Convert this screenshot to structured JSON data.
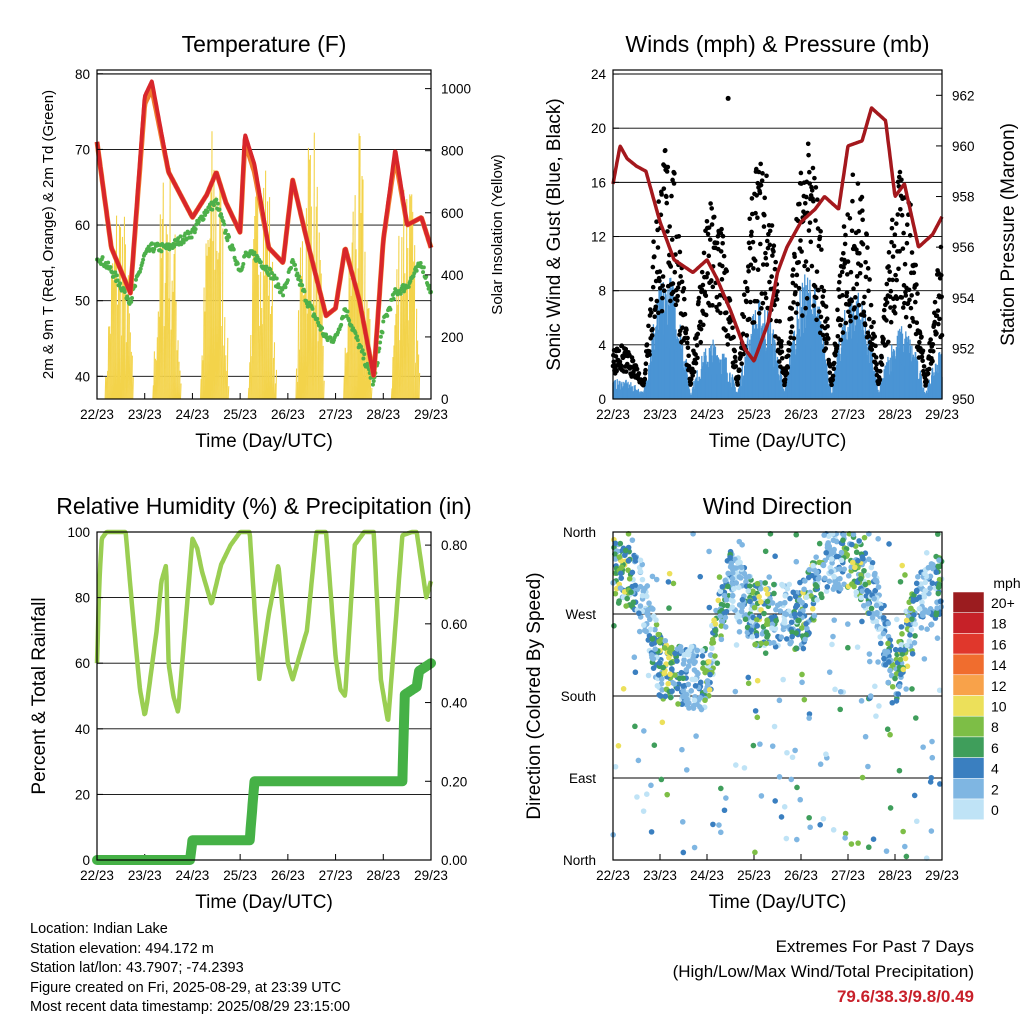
{
  "time_ticks": [
    "22/23",
    "23/23",
    "24/23",
    "25/23",
    "26/23",
    "27/23",
    "28/23",
    "29/23"
  ],
  "colors": {
    "temp2m": "#d8262b",
    "temp9m": "#f07b2e",
    "dewpoint": "#4db04a",
    "insolation": "#f3d34a",
    "wind_sonic": "#4a94d4",
    "wind_gust": "#000000",
    "pressure": "#a4181d",
    "rh": "#9ace52",
    "precip": "#45b146"
  },
  "chart_data": [
    {
      "type": "line",
      "title": "Temperature (F)",
      "xlabel": "Time (Day/UTC)",
      "ylabel": "2m & 9m T (Red, Orange) & 2m Td (Green)",
      "ylabel_right": "Solar Insolation (Yellow)",
      "ylim": [
        37,
        80.5
      ],
      "ylim_right": [
        0,
        1060
      ],
      "yticks": [
        40,
        50,
        60,
        70,
        80
      ],
      "yticks_right": [
        0,
        200,
        400,
        600,
        800,
        1000
      ],
      "grid_y": [
        40,
        50,
        60,
        70,
        80
      ],
      "x": [
        0,
        0.3,
        0.7,
        1.0,
        1.15,
        1.5,
        2.0,
        2.3,
        2.5,
        2.7,
        3.0,
        3.1,
        3.3,
        3.6,
        3.9,
        4.1,
        4.4,
        4.8,
        5.0,
        5.2,
        5.5,
        5.8,
        6.0,
        6.25,
        6.5,
        6.8,
        7.0
      ],
      "series": [
        {
          "name": "2m T",
          "values": [
            71,
            57,
            51,
            77,
            79,
            67,
            61,
            64,
            67,
            63,
            59,
            72,
            68,
            57,
            55,
            66,
            58,
            48,
            49,
            57,
            50,
            40,
            58,
            70,
            60,
            61,
            57
          ]
        },
        {
          "name": "9m T",
          "values": [
            71,
            57,
            51,
            76,
            78,
            67,
            61,
            64,
            67,
            63,
            59,
            71,
            67,
            57,
            55,
            66,
            58,
            48,
            49,
            57,
            50,
            40,
            58,
            69,
            60,
            61,
            57
          ]
        },
        {
          "name": "2m Td",
          "values": [
            56,
            54,
            50,
            56,
            57,
            57,
            59,
            62,
            63,
            59,
            54,
            56,
            56,
            54,
            51,
            55,
            50,
            45,
            45,
            49,
            44,
            39,
            47,
            51,
            52,
            55,
            51
          ]
        },
        {
          "name": "Insolation",
          "daily_peaks": [
            720,
            840,
            950,
            960,
            1000,
            870,
            870
          ]
        }
      ]
    },
    {
      "type": "scatter",
      "title": "Winds (mph) & Pressure (mb)",
      "xlabel": "Time (Day/UTC)",
      "ylabel": "Sonic Wind & Gust (Blue, Black)",
      "ylabel_right": "Station Pressure (Maroon)",
      "ylim": [
        0,
        24.3
      ],
      "ylim_right": [
        950,
        963
      ],
      "yticks": [
        0,
        4,
        8,
        12,
        16,
        20,
        24
      ],
      "yticks_right": [
        950,
        952,
        954,
        956,
        958,
        960,
        962
      ],
      "grid_y": [
        4,
        8,
        12,
        16,
        20,
        24
      ],
      "x": [
        0,
        0.15,
        0.3,
        0.5,
        0.7,
        1.0,
        1.3,
        1.7,
        2.0,
        2.2,
        2.5,
        2.8,
        3.0,
        3.3,
        3.5,
        3.7,
        4.0,
        4.3,
        4.5,
        4.8,
        5.0,
        5.3,
        5.5,
        5.8,
        6.0,
        6.2,
        6.5,
        6.8,
        7.0
      ],
      "series": [
        {
          "name": "Pressure",
          "values": [
            958.5,
            960,
            959.5,
            959.2,
            959,
            957,
            955.5,
            955,
            955.5,
            954.8,
            953.5,
            952,
            951.5,
            953,
            955,
            956,
            957,
            957.5,
            958,
            957.5,
            960,
            960.2,
            961.5,
            961,
            958,
            958.5,
            956,
            956.5,
            957.2
          ]
        },
        {
          "name": "Sonic Wind daily peaks",
          "values": [
            1,
            9,
            4,
            7,
            9,
            8,
            5,
            4
          ]
        },
        {
          "name": "Gust daily peaks",
          "values": [
            3,
            18,
            14,
            17,
            18,
            16,
            16,
            12
          ]
        },
        {
          "name": "Gust max",
          "values": [
            22.2
          ]
        }
      ]
    },
    {
      "type": "line",
      "title": "Relative Humidity (%) & Precipitation (in)",
      "xlabel": "Time (Day/UTC)",
      "ylabel": "Percent & Total Rainfall",
      "ylim": [
        0,
        100
      ],
      "ylim_right": [
        0,
        0.8333
      ],
      "yticks": [
        0,
        20,
        40,
        60,
        80,
        100
      ],
      "yticks_right": [
        "0.00",
        "0.20",
        "0.40",
        "0.60",
        "0.80"
      ],
      "grid_y": [
        0,
        20,
        40,
        60,
        80,
        100
      ],
      "x": [
        0,
        0.05,
        0.1,
        0.2,
        0.4,
        0.6,
        0.75,
        0.9,
        1.0,
        1.05,
        1.25,
        1.35,
        1.45,
        1.5,
        1.6,
        1.7,
        1.9,
        2.0,
        2.1,
        2.2,
        2.4,
        2.6,
        2.8,
        3.0,
        3.2,
        3.4,
        3.6,
        3.8,
        4.0,
        4.1,
        4.4,
        4.6,
        4.8,
        5.0,
        5.1,
        5.2,
        5.4,
        5.6,
        5.8,
        5.95,
        6.1,
        6.4,
        6.6,
        6.7,
        6.9,
        7.0
      ],
      "series": [
        {
          "name": "RH",
          "values": [
            60,
            85,
            98,
            100,
            100,
            100,
            75,
            52,
            44,
            48,
            70,
            85,
            90,
            60,
            50,
            45,
            80,
            98,
            95,
            88,
            78,
            90,
            96,
            100,
            100,
            55,
            75,
            90,
            60,
            55,
            70,
            100,
            100,
            62,
            52,
            50,
            96,
            100,
            100,
            55,
            42,
            99,
            100,
            100,
            80,
            85
          ]
        },
        {
          "name": "Total Precipitation",
          "x": [
            0,
            1.95,
            2.0,
            3.2,
            3.3,
            6.4,
            6.45,
            6.7,
            6.75,
            7.0
          ],
          "values": [
            0,
            0,
            0.05,
            0.05,
            0.2,
            0.2,
            0.42,
            0.44,
            0.48,
            0.5
          ]
        }
      ]
    },
    {
      "type": "scatter",
      "title": "Wind Direction",
      "xlabel": "Time (Day/UTC)",
      "ylabel": "Direction (Colored By Speed)",
      "yticks": [
        "North",
        "East",
        "South",
        "West",
        "North"
      ],
      "grid_y": [
        90,
        180,
        270
      ],
      "ylim": [
        0,
        360
      ],
      "x": [
        0,
        0.6,
        1.0,
        1.5,
        2.0,
        2.5,
        3.0,
        3.5,
        4.0,
        4.5,
        5.0,
        5.5,
        6.0,
        6.5,
        7.0
      ],
      "series": [
        {
          "name": "Dominant direction (deg)",
          "values": [
            320,
            300,
            210,
            200,
            200,
            310,
            270,
            270,
            260,
            330,
            330,
            300,
            200,
            280,
            300
          ]
        }
      ],
      "colorbar": {
        "title": "mph",
        "labels": [
          "20+",
          "18",
          "16",
          "14",
          "12",
          "10",
          "8",
          "6",
          "4",
          "2",
          "0"
        ],
        "colors": [
          "#9b1c1f",
          "#c62128",
          "#e0372c",
          "#f06d2e",
          "#f8a24a",
          "#ece05a",
          "#7dbe46",
          "#3f9e5b",
          "#3a7fc0",
          "#7fb6e2",
          "#bfe3f6"
        ]
      }
    }
  ],
  "station": {
    "location": "Location: Indian Lake",
    "elevation": "Station elevation: 494.172 m",
    "latlon": "Station lat/lon: 43.7907; -74.2393",
    "created": "Figure created on Fri, 2025-08-29, at 23:39 UTC",
    "timestamp": "Most recent data timestamp: 2025/08/29 23:15:00"
  },
  "extremes": {
    "heading": "Extremes For Past 7 Days",
    "subheading": "(High/Low/Max Wind/Total Precipitation)",
    "values": "79.6/38.3/9.8/0.49"
  }
}
